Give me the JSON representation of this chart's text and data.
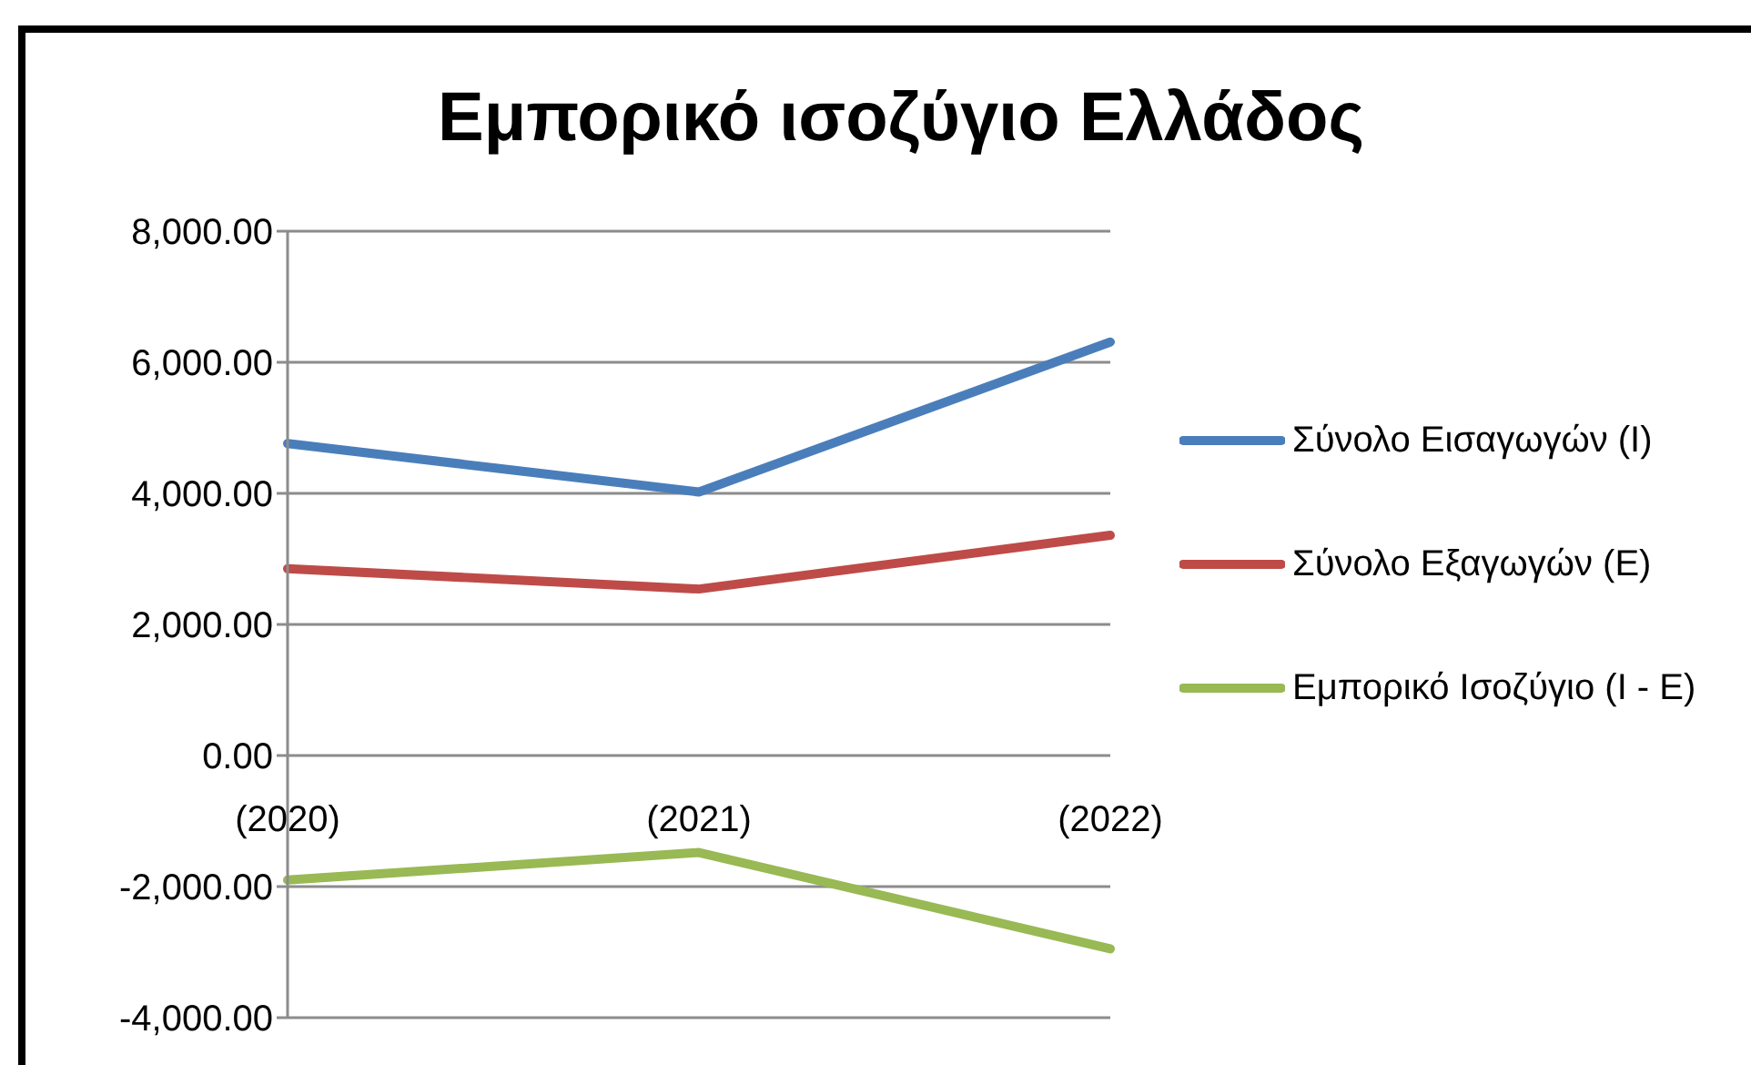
{
  "chart_data": {
    "type": "line",
    "title": "Εμπορικό ισοζύγιο Ελλάδος",
    "categories": [
      "(2020)",
      "(2021)",
      "(2022)"
    ],
    "series": [
      {
        "name": "Σύνολο Εισαγωγών (Ι)",
        "color": "#4a7ebb",
        "values": [
          4760,
          4020,
          6310
        ]
      },
      {
        "name": "Σύνολο Εξαγωγών (Ε)",
        "color": "#be4b48",
        "values": [
          2850,
          2540,
          3360
        ]
      },
      {
        "name": "Εμπορικό Ισοζύγιο (Ι - Ε)",
        "color": "#98b954",
        "values": [
          -1900,
          -1480,
          -2950
        ]
      }
    ],
    "ylim": [
      -4000,
      8000
    ],
    "yticks": [
      {
        "value": -4000,
        "label": "-4,000.00"
      },
      {
        "value": -2000,
        "label": "-2,000.00"
      },
      {
        "value": 0,
        "label": "0.00"
      },
      {
        "value": 2000,
        "label": "2,000.00"
      },
      {
        "value": 4000,
        "label": "4,000.00"
      },
      {
        "value": 6000,
        "label": "6,000.00"
      },
      {
        "value": 8000,
        "label": "8,000.00"
      }
    ],
    "grid": "y",
    "legend": "right",
    "marker": "none",
    "line_style": "solid"
  }
}
